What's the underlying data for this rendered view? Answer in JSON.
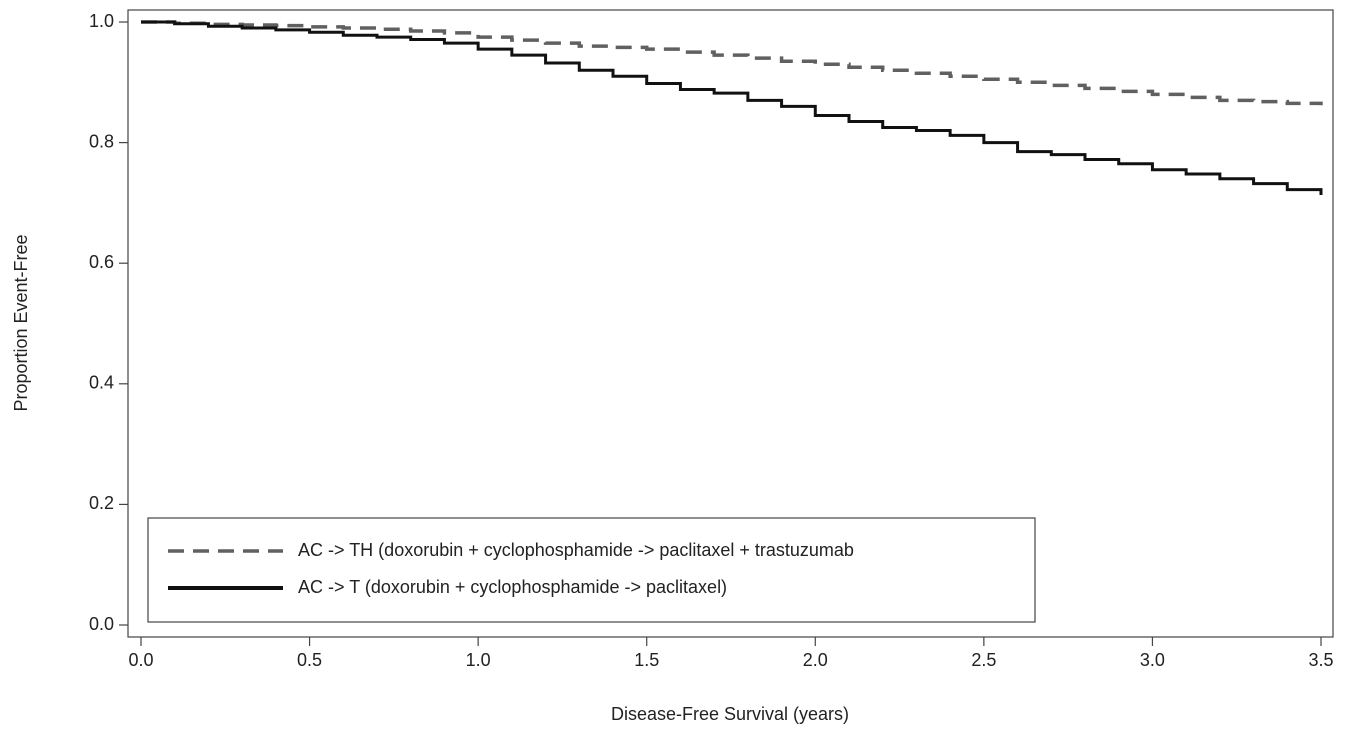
{
  "chart_data": {
    "type": "step",
    "x_label": "Disease-Free Survival (years)",
    "y_label": "Proportion Event-Free",
    "x": [
      0,
      0.1,
      0.2,
      0.3,
      0.4,
      0.5,
      0.6,
      0.7,
      0.8,
      0.9,
      1.0,
      1.1,
      1.2,
      1.3,
      1.4,
      1.5,
      1.6,
      1.7,
      1.8,
      1.9,
      2.0,
      2.1,
      2.2,
      2.3,
      2.4,
      2.5,
      2.6,
      2.7,
      2.8,
      2.9,
      3.0,
      3.1,
      3.2,
      3.3,
      3.4,
      3.5
    ],
    "series": [
      {
        "name": "AC -> TH (doxorubin + cyclophosphamide -> paclitaxel + trastuzumab",
        "color": "#606060",
        "dashed": true,
        "values": [
          1.0,
          0.998,
          0.996,
          0.995,
          0.994,
          0.992,
          0.99,
          0.988,
          0.985,
          0.982,
          0.975,
          0.97,
          0.965,
          0.96,
          0.958,
          0.955,
          0.95,
          0.945,
          0.94,
          0.935,
          0.93,
          0.925,
          0.92,
          0.915,
          0.91,
          0.905,
          0.9,
          0.895,
          0.89,
          0.885,
          0.88,
          0.875,
          0.87,
          0.868,
          0.865,
          0.862
        ]
      },
      {
        "name": "AC -> T (doxorubin + cyclophosphamide -> paclitaxel)",
        "color": "#111111",
        "dashed": false,
        "values": [
          1.0,
          0.997,
          0.993,
          0.99,
          0.987,
          0.983,
          0.978,
          0.975,
          0.971,
          0.965,
          0.955,
          0.945,
          0.932,
          0.92,
          0.91,
          0.898,
          0.888,
          0.882,
          0.87,
          0.86,
          0.845,
          0.835,
          0.825,
          0.82,
          0.812,
          0.8,
          0.785,
          0.78,
          0.772,
          0.765,
          0.755,
          0.748,
          0.74,
          0.732,
          0.722,
          0.713
        ]
      }
    ],
    "xlim": [
      0,
      3.5
    ],
    "xticks": [
      {
        "value": 0,
        "label": "0.0"
      },
      0.5,
      {
        "value": 1,
        "label": "1.0"
      },
      1.5,
      {
        "value": 2,
        "label": "2.0"
      },
      2.5,
      {
        "value": 3,
        "label": "3.0"
      },
      3.5
    ],
    "ylim": [
      0,
      1
    ],
    "yticks": [
      {
        "value": 0,
        "label": "0.0"
      },
      0.2,
      0.4,
      0.6,
      0.8,
      {
        "value": 1,
        "label": "1.0"
      }
    ],
    "legend": "lower left"
  }
}
